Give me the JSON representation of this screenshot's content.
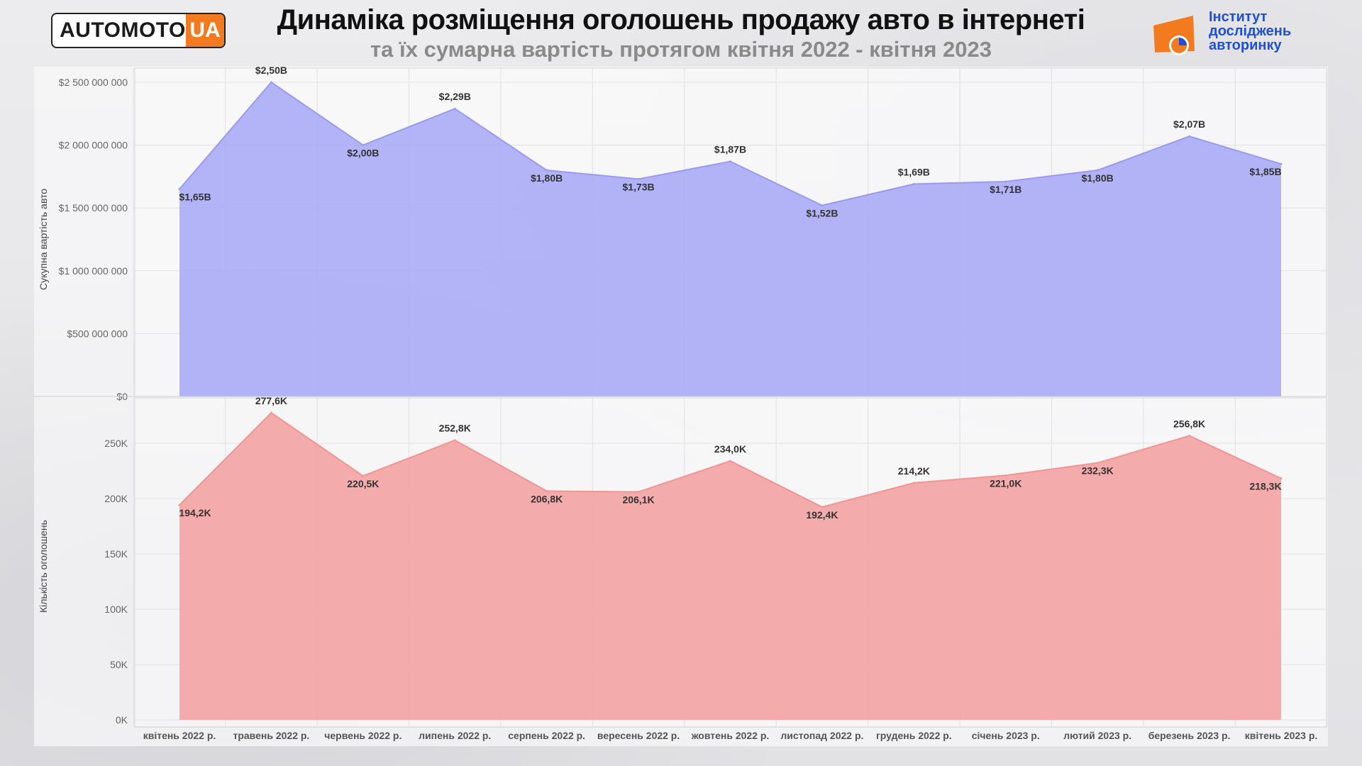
{
  "header": {
    "logo_left_word": "AUTOMOTO",
    "logo_left_ua": "UA",
    "title": "Динаміка розміщення оголошень продажу авто в інтернеті",
    "subtitle": "та їх сумарна вартість протягом квітня 2022 - квітня 2023",
    "logo_right_lines": [
      "Інститут",
      "досліджень",
      "авторинку"
    ]
  },
  "colors": {
    "value_series": "#a9a9f6",
    "value_series_line": "#9a9af0",
    "count_series": "#f4a0a0",
    "count_series_line": "#f29494",
    "logo_orange": "#f47a20",
    "logo_blue": "#1e4fd8"
  },
  "chart_data": [
    {
      "type": "area",
      "ylabel": "Сукупна вартість авто",
      "ylim": [
        0,
        2500000000
      ],
      "yticks": [
        {
          "value": 0,
          "label": "$0"
        },
        {
          "value": 500000000,
          "label": "$500 000 000"
        },
        {
          "value": 1000000000,
          "label": "$1 000 000 000"
        },
        {
          "value": 1500000000,
          "label": "$1 500 000 000"
        },
        {
          "value": 2000000000,
          "label": "$2 000 000 000"
        },
        {
          "value": 2500000000,
          "label": "$2 500 000 000"
        }
      ],
      "values": [
        1650000000,
        2500000000,
        2000000000,
        2290000000,
        1800000000,
        1730000000,
        1870000000,
        1520000000,
        1690000000,
        1710000000,
        1800000000,
        2070000000,
        1850000000
      ],
      "data_labels": [
        "$1,65B",
        "$2,50B",
        "$2,00B",
        "$2,29B",
        "$1,80B",
        "$1,73B",
        "$1,87B",
        "$1,52B",
        "$1,69B",
        "$1,71B",
        "$1,80B",
        "$2,07B",
        "$1,85B"
      ]
    },
    {
      "type": "area",
      "ylabel": "Кількість оголошень",
      "xlabel": "",
      "ylim": [
        0,
        277600
      ],
      "yticks": [
        {
          "value": 0,
          "label": "0K"
        },
        {
          "value": 50000,
          "label": "50K"
        },
        {
          "value": 100000,
          "label": "100K"
        },
        {
          "value": 150000,
          "label": "150K"
        },
        {
          "value": 200000,
          "label": "200K"
        },
        {
          "value": 250000,
          "label": "250K"
        }
      ],
      "values": [
        194200,
        277600,
        220500,
        252800,
        206800,
        206100,
        234000,
        192400,
        214200,
        221000,
        232300,
        256800,
        218300
      ],
      "data_labels": [
        "194,2K",
        "277,6K",
        "220,5K",
        "252,8K",
        "206,8K",
        "206,1K",
        "234,0K",
        "192,4K",
        "214,2K",
        "221,0K",
        "232,3K",
        "256,8K",
        "218,3K"
      ]
    }
  ],
  "categories": [
    "квітень 2022 р.",
    "травень 2022 р.",
    "червень 2022 р.",
    "липень 2022 р.",
    "серпень 2022 р.",
    "вересень 2022 р.",
    "жовтень 2022 р.",
    "листопад 2022 р.",
    "грудень 2022 р.",
    "січень 2023 р.",
    "лютий 2023 р.",
    "березень 2023 р.",
    "квітень 2023 р."
  ]
}
